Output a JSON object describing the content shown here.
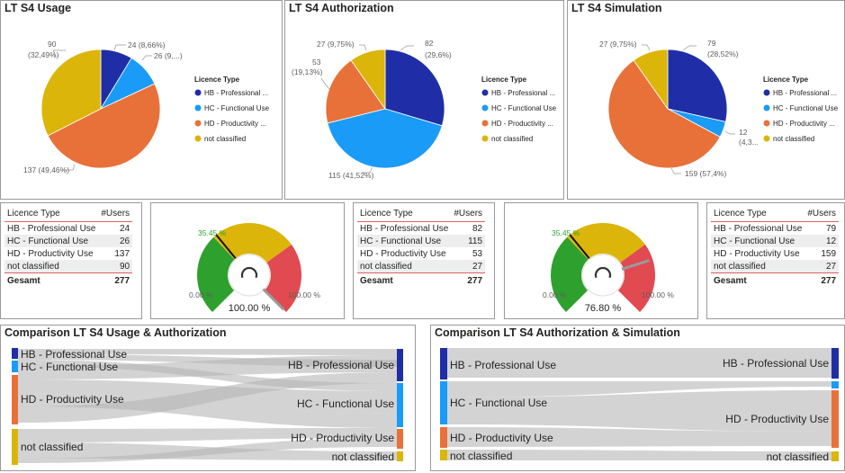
{
  "legend_title": "Licence Type",
  "legend_items": [
    "HB - Professional ...",
    "HC - Functional Use",
    "HD - Productivity ...",
    "not classified"
  ],
  "colors": {
    "hb": "#1f2ea6",
    "hc": "#1a9bf7",
    "hd": "#e8713a",
    "nc": "#dcb50a",
    "gauge_green": "#2ea02e",
    "gauge_yellow": "#dcb50a",
    "gauge_red": "#e04a50",
    "target_green": "#2ca02c"
  },
  "usage": {
    "title": "LT S4 Usage",
    "chart_data": {
      "type": "pie",
      "title": "LT S4 Usage",
      "categories": [
        "HB - Professional Use",
        "HC - Functional Use",
        "HD - Productivity Use",
        "not classified"
      ],
      "values": [
        24,
        26,
        137,
        90
      ],
      "legend": "right"
    },
    "labels": {
      "hb": "24 (8,66%)",
      "hc": "26 (9,...)",
      "hd": "137 (49,46%)",
      "nc_1": "90",
      "nc_2": "(32,49%)"
    }
  },
  "auth": {
    "title": "LT S4 Authorization",
    "chart_data": {
      "type": "pie",
      "title": "LT S4 Authorization",
      "categories": [
        "HB - Professional Use",
        "HC - Functional Use",
        "HD - Productivity Use",
        "not classified"
      ],
      "values": [
        82,
        115,
        53,
        27
      ],
      "legend": "right"
    },
    "labels": {
      "hb_1": "82",
      "hb_2": "(29,6%)",
      "hc": "115 (41,52%)",
      "hd_1": "53",
      "hd_2": "(19,13%)",
      "nc": "27 (9,75%)"
    }
  },
  "sim": {
    "title": "LT S4 Simulation",
    "chart_data": {
      "type": "pie",
      "title": "LT S4 Simulation",
      "categories": [
        "HB - Professional Use",
        "HC - Functional Use",
        "HD - Productivity Use",
        "not classified"
      ],
      "values": [
        79,
        12,
        159,
        27
      ],
      "legend": "right"
    },
    "labels": {
      "hb_1": "79",
      "hb_2": "(28,52%)",
      "hc_1": "12",
      "hc_2": "(4,3...",
      "hd": "159 (57,4%)",
      "nc": "27 (9,75%)"
    }
  },
  "tables": {
    "header": {
      "type": "Licence Type",
      "users": "#Users"
    },
    "row_labels": [
      "HB - Professional Use",
      "HC - Functional Use",
      "HD - Productivity Use",
      "not classified"
    ],
    "total_label": "Gesamt",
    "usage": {
      "values": [
        "24",
        "26",
        "137",
        "90"
      ],
      "total": "277"
    },
    "auth": {
      "values": [
        "82",
        "115",
        "53",
        "27"
      ],
      "total": "277"
    },
    "sim": {
      "values": [
        "79",
        "12",
        "159",
        "27"
      ],
      "total": "277"
    }
  },
  "gauges": {
    "g1": {
      "value": "100.00 %",
      "target": "35.45 %",
      "min": "0.00 %",
      "max": "100.00 %",
      "value_fraction": 1.0,
      "target_fraction": 0.3545
    },
    "g2": {
      "value": "76.80 %",
      "target": "35.45 %",
      "min": "0.00 %",
      "max": "100.00 %",
      "value_fraction": 0.768,
      "target_fraction": 0.3545
    }
  },
  "sankey1": {
    "title": "Comparison LT S4 Usage & Authorization",
    "left": [
      "HB - Professional Use",
      "HC - Functional Use",
      "HD - Productivity Use",
      "not classified"
    ],
    "right": [
      "HB - Professional Use",
      "HC - Functional Use",
      "HD - Productivity Use",
      "not classified"
    ]
  },
  "sankey2": {
    "title": "Comparison LT S4 Authorization & Simulation",
    "left": [
      "HB - Professional Use",
      "HC - Functional Use",
      "HD - Productivity Use",
      "not classified"
    ],
    "right": [
      "HB - Professional Use",
      "HD - Productivity Use",
      "not classified"
    ]
  }
}
